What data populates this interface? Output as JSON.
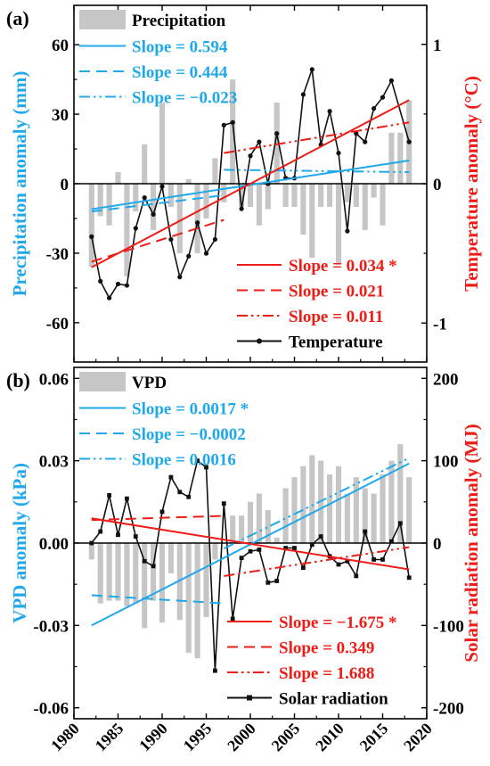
{
  "colors": {
    "blue": "#1fa8ea",
    "red": "#ee1c16",
    "bar": "#c6c6c6",
    "black": "#111111"
  },
  "chart_data": [
    {
      "type": "bar+line",
      "panel_label": "(a)",
      "ylabel": "Precipitation anomaly (mm)",
      "y2label": "Temperature anomaly (°C)",
      "x_ticks": [
        1980,
        1985,
        1990,
        1995,
        2000,
        2005,
        2010,
        2015,
        2020
      ],
      "xlim": [
        1980,
        2020
      ],
      "ylim": [
        -77,
        77
      ],
      "y_ticks": [
        -60,
        -30,
        0,
        30,
        60
      ],
      "y_tick_labels": [
        "-60",
        "-30",
        "0",
        "30",
        "60"
      ],
      "y2lim": [
        -1.28,
        1.28
      ],
      "y2_ticks": [
        -1,
        0,
        1
      ],
      "y2_tick_labels": [
        "-1",
        "0",
        "1"
      ],
      "years": [
        1982,
        1983,
        1984,
        1985,
        1986,
        1987,
        1988,
        1989,
        1990,
        1991,
        1992,
        1993,
        1994,
        1995,
        1996,
        1997,
        1998,
        1999,
        2000,
        2001,
        2002,
        2003,
        2004,
        2005,
        2006,
        2007,
        2008,
        2009,
        2010,
        2011,
        2012,
        2013,
        2014,
        2015,
        2016,
        2017,
        2018
      ],
      "series": [
        {
          "name": "Precipitation",
          "kind": "bar",
          "axis": "left",
          "values": [
            -36,
            -14,
            -18,
            5,
            -40,
            -12,
            17,
            -20,
            35,
            -10,
            -30,
            2,
            -30,
            -15,
            11,
            -8,
            45,
            -10,
            -10,
            -18,
            -11,
            35,
            -10,
            -10,
            -22,
            -32,
            -10,
            -10,
            -35,
            -8,
            -10,
            -20,
            -6,
            -18,
            22,
            22,
            36
          ]
        },
        {
          "name": "Temperature",
          "kind": "line",
          "axis": "right",
          "values": [
            -0.38,
            -0.7,
            -0.82,
            -0.72,
            -0.73,
            -0.32,
            -0.1,
            -0.22,
            -0.02,
            -0.4,
            -0.67,
            -0.52,
            -0.28,
            -0.5,
            -0.4,
            0.42,
            0.44,
            -0.18,
            0.2,
            0.3,
            0.0,
            0.36,
            0.04,
            0.04,
            0.64,
            0.82,
            0.28,
            0.52,
            0.22,
            -0.34,
            0.36,
            0.3,
            0.54,
            0.62,
            0.74,
            0.3
          ]
        }
      ],
      "temperature_years": [
        1982,
        1983,
        1984,
        1985,
        1986,
        1987,
        1988,
        1989,
        1990,
        1991,
        1992,
        1993,
        1994,
        1995,
        1996,
        1997,
        1998,
        1999,
        2000,
        2001,
        2002,
        2003,
        2004,
        2005,
        2006,
        2007,
        2008,
        2009,
        2010,
        2011,
        2012,
        2013,
        2014,
        2015,
        2016,
        2018
      ],
      "trends": [
        {
          "label": "Slope = 0.594",
          "color": "blue",
          "dash": "solid",
          "axis": "left",
          "x": [
            1982,
            2018
          ],
          "y": [
            -11,
            10
          ]
        },
        {
          "label": "Slope = 0.444",
          "color": "blue",
          "dash": "dash",
          "axis": "left",
          "x": [
            1982,
            1997
          ],
          "y": [
            -12,
            -5
          ]
        },
        {
          "label": "Slope = −0.023",
          "color": "blue",
          "dash": "dashdotdot",
          "axis": "left",
          "x": [
            1997,
            2018
          ],
          "y": [
            6,
            5
          ]
        },
        {
          "label": "Slope = 0.034 *",
          "color": "red",
          "dash": "solid",
          "axis": "right",
          "x": [
            1982,
            2018
          ],
          "y": [
            -0.6,
            0.6
          ]
        },
        {
          "label": "Slope = 0.021",
          "color": "red",
          "dash": "dash",
          "axis": "right",
          "x": [
            1982,
            1997
          ],
          "y": [
            -0.56,
            -0.26
          ]
        },
        {
          "label": "Slope = 0.011",
          "color": "red",
          "dash": "dashdotdot",
          "axis": "right",
          "x": [
            1997,
            2018
          ],
          "y": [
            0.22,
            0.44
          ]
        }
      ],
      "legend_top": [
        "Precipitation",
        "Slope = 0.594",
        "Slope = 0.444",
        "Slope = −0.023"
      ],
      "legend_bottom": [
        "Slope = 0.034 *",
        "Slope = 0.021",
        "Slope = 0.011",
        "Temperature"
      ]
    },
    {
      "type": "bar+line",
      "panel_label": "(b)",
      "ylabel": "VPD anomaly (kPa)",
      "y2label": "Solar radiation anomaly (MJ)",
      "x_ticks": [
        1980,
        1985,
        1990,
        1995,
        2000,
        2005,
        2010,
        2015,
        2020
      ],
      "xlim": [
        1980,
        2020
      ],
      "ylim": [
        -0.064,
        0.064
      ],
      "y_ticks": [
        -0.06,
        -0.03,
        0.0,
        0.03,
        0.06
      ],
      "y_tick_labels": [
        "-0.06",
        "-0.03",
        "0.00",
        "0.03",
        "0.06"
      ],
      "y2lim": [
        -213.3,
        213.3
      ],
      "y2_ticks": [
        -200,
        -100,
        0,
        100,
        200
      ],
      "y2_tick_labels": [
        "-200",
        "-100",
        "0",
        "100",
        "200"
      ],
      "years": [
        1982,
        1983,
        1984,
        1985,
        1986,
        1987,
        1988,
        1989,
        1990,
        1991,
        1992,
        1993,
        1994,
        1995,
        1996,
        1997,
        1998,
        1999,
        2000,
        2001,
        2002,
        2003,
        2004,
        2005,
        2006,
        2007,
        2008,
        2009,
        2010,
        2011,
        2012,
        2013,
        2014,
        2015,
        2016,
        2017,
        2018
      ],
      "series": [
        {
          "name": "VPD",
          "kind": "bar",
          "axis": "left",
          "values": [
            -0.006,
            -0.022,
            -0.021,
            -0.021,
            -0.023,
            -0.022,
            -0.031,
            -0.021,
            -0.029,
            -0.011,
            -0.028,
            -0.04,
            -0.042,
            -0.027,
            -0.006,
            0.0,
            0.01,
            0.01,
            0.015,
            0.018,
            0.012,
            0.002,
            0.02,
            0.024,
            0.028,
            0.032,
            0.03,
            0.025,
            0.028,
            0.018,
            0.024,
            0.02,
            0.018,
            0.025,
            0.03,
            0.036,
            0.024
          ]
        },
        {
          "name": "Solar radiation",
          "kind": "line",
          "axis": "right",
          "values": [
            0,
            14,
            58,
            10,
            54,
            8,
            -22,
            -28,
            38,
            80,
            62,
            56,
            100,
            92,
            -155,
            48,
            -92,
            -18,
            -10,
            -8,
            -48,
            -46,
            -6,
            -6,
            -30,
            -2,
            8,
            -16,
            -26,
            -22,
            -40,
            14,
            -20,
            -20,
            2,
            24,
            -42
          ]
        },
        "solar_years_same_as_years"
      ],
      "trends": [
        {
          "label": "Slope = 0.0017 *",
          "color": "blue",
          "dash": "solid",
          "axis": "left",
          "x": [
            1982,
            2018
          ],
          "y": [
            -0.03,
            0.029
          ]
        },
        {
          "label": "Slope = −0.0002",
          "color": "blue",
          "dash": "dash",
          "axis": "left",
          "x": [
            1982,
            1997
          ],
          "y": [
            -0.019,
            -0.022
          ]
        },
        {
          "label": "Slope = 0.0016",
          "color": "blue",
          "dash": "dashdotdot",
          "axis": "left",
          "x": [
            1997,
            2018
          ],
          "y": [
            -0.002,
            0.031
          ]
        },
        {
          "label": "Slope = −1.675 *",
          "color": "red",
          "dash": "solid",
          "axis": "right",
          "x": [
            1982,
            2018
          ],
          "y": [
            30,
            -32
          ]
        },
        {
          "label": "Slope = 0.349",
          "color": "red",
          "dash": "dash",
          "axis": "right",
          "x": [
            1982,
            1997
          ],
          "y": [
            28,
            33
          ]
        },
        {
          "label": "Slope = 1.688",
          "color": "red",
          "dash": "dashdotdot",
          "axis": "right",
          "x": [
            1997,
            2018
          ],
          "y": [
            -40,
            -5
          ]
        }
      ],
      "legend_top": [
        "VPD",
        "Slope = 0.0017 *",
        "Slope = −0.0002",
        "Slope = 0.0016"
      ],
      "legend_bottom": [
        "Slope = −1.675 *",
        "Slope = 0.349",
        "Slope = 1.688",
        "Solar radiation"
      ]
    }
  ]
}
